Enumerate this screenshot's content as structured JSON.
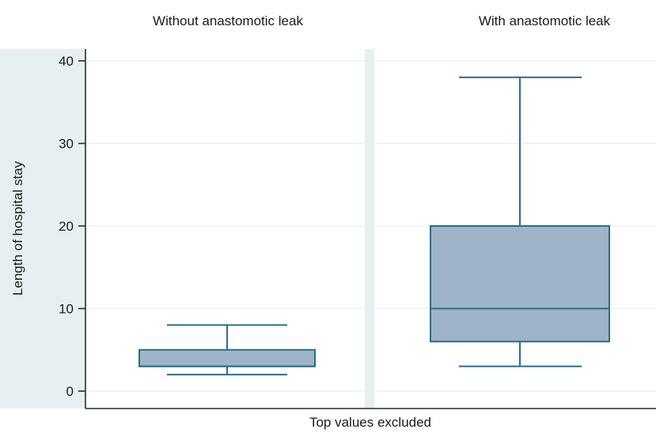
{
  "chart_data": {
    "type": "box",
    "ylabel": "Length of hospital stay",
    "xlabel": "Top values excluded",
    "ylim": [
      0,
      40
    ],
    "yticks": [
      0,
      10,
      20,
      30,
      40
    ],
    "grid": true,
    "box_fill": "#9fb4c7",
    "box_stroke": "#2b6d8a",
    "panel_strip_color": "#e6f0f3",
    "panels": [
      {
        "title": "Without anastomotic leak",
        "min": 2,
        "q1": 3,
        "median": 3,
        "q3": 5,
        "max": 8
      },
      {
        "title": "With anastomotic leak",
        "min": 3,
        "q1": 6,
        "median": 10,
        "q3": 20,
        "max": 38
      }
    ]
  }
}
